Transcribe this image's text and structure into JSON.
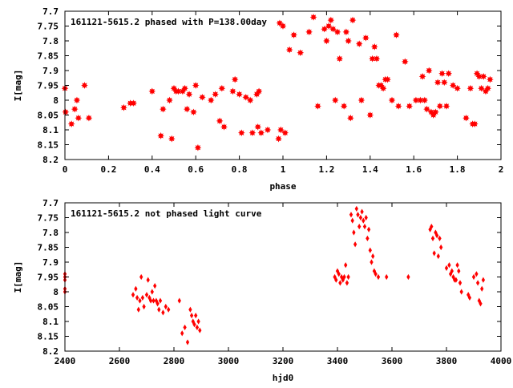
{
  "chart_data": [
    {
      "type": "scatter",
      "title": "161121-5615.2 phased with P=138.00day",
      "xlabel": "phase",
      "ylabel": "I[mag]",
      "xlim": [
        0,
        2
      ],
      "ylim": [
        8.2,
        7.7
      ],
      "y_inverted": true,
      "grid": false,
      "color": "#ff0000",
      "marker": "filled-star",
      "x_ticks": [
        "0",
        "0.2",
        "0.4",
        "0.6",
        "0.8",
        "1",
        "1.2",
        "1.4",
        "1.6",
        "1.8",
        "2"
      ],
      "y_ticks": [
        "7.7",
        "7.75",
        "7.8",
        "7.85",
        "7.9",
        "7.95",
        "8",
        "8.05",
        "8.1",
        "8.15",
        "8.2"
      ],
      "series": [
        {
          "points": [
            [
              0.0,
              7.96
            ],
            [
              0.003,
              8.04
            ],
            [
              0.03,
              8.08
            ],
            [
              0.045,
              8.03
            ],
            [
              0.055,
              8.0
            ],
            [
              0.062,
              8.06
            ],
            [
              0.09,
              7.95
            ],
            [
              0.11,
              8.06
            ],
            [
              0.27,
              8.025
            ],
            [
              0.3,
              8.01
            ],
            [
              0.315,
              8.01
            ],
            [
              0.4,
              7.97
            ],
            [
              0.44,
              8.12
            ],
            [
              0.45,
              8.03
            ],
            [
              0.48,
              8.0
            ],
            [
              0.49,
              8.13
            ],
            [
              0.5,
              7.96
            ],
            [
              0.51,
              7.97
            ],
            [
              0.52,
              7.97
            ],
            [
              0.54,
              7.97
            ],
            [
              0.55,
              7.96
            ],
            [
              0.56,
              8.03
            ],
            [
              0.57,
              7.98
            ],
            [
              0.59,
              8.04
            ],
            [
              0.6,
              7.95
            ],
            [
              0.61,
              8.16
            ],
            [
              0.63,
              7.99
            ],
            [
              0.67,
              8.0
            ],
            [
              0.69,
              7.98
            ],
            [
              0.71,
              8.07
            ],
            [
              0.72,
              7.96
            ],
            [
              0.73,
              8.09
            ],
            [
              0.77,
              7.97
            ],
            [
              0.78,
              7.93
            ],
            [
              0.8,
              7.98
            ],
            [
              0.81,
              8.11
            ],
            [
              0.83,
              7.99
            ],
            [
              0.85,
              8.0
            ],
            [
              0.86,
              8.11
            ],
            [
              0.88,
              7.98
            ],
            [
              0.885,
              8.09
            ],
            [
              0.89,
              7.97
            ],
            [
              0.9,
              8.11
            ],
            [
              0.93,
              8.1
            ],
            [
              0.98,
              8.13
            ],
            [
              0.985,
              7.74
            ],
            [
              0.99,
              8.1
            ],
            [
              1.0,
              7.75
            ],
            [
              1.01,
              8.11
            ],
            [
              1.03,
              7.83
            ],
            [
              1.05,
              7.78
            ],
            [
              1.08,
              7.84
            ],
            [
              1.12,
              7.77
            ],
            [
              1.14,
              7.72
            ],
            [
              1.16,
              8.02
            ],
            [
              1.19,
              7.76
            ],
            [
              1.2,
              7.8
            ],
            [
              1.21,
              7.75
            ],
            [
              1.22,
              7.73
            ],
            [
              1.23,
              7.76
            ],
            [
              1.24,
              8.0
            ],
            [
              1.25,
              7.77
            ],
            [
              1.26,
              7.86
            ],
            [
              1.28,
              8.02
            ],
            [
              1.29,
              7.77
            ],
            [
              1.3,
              7.8
            ],
            [
              1.31,
              8.06
            ],
            [
              1.32,
              7.73
            ],
            [
              1.35,
              7.81
            ],
            [
              1.36,
              8.0
            ],
            [
              1.38,
              7.79
            ],
            [
              1.4,
              8.05
            ],
            [
              1.41,
              7.86
            ],
            [
              1.42,
              7.82
            ],
            [
              1.43,
              7.86
            ],
            [
              1.44,
              7.95
            ],
            [
              1.45,
              7.95
            ],
            [
              1.46,
              7.96
            ],
            [
              1.47,
              7.93
            ],
            [
              1.48,
              7.93
            ],
            [
              1.5,
              8.0
            ],
            [
              1.52,
              7.78
            ],
            [
              1.53,
              8.02
            ],
            [
              1.56,
              7.87
            ],
            [
              1.58,
              8.02
            ],
            [
              1.61,
              8.0
            ],
            [
              1.63,
              8.0
            ],
            [
              1.64,
              7.92
            ],
            [
              1.65,
              8.0
            ],
            [
              1.66,
              8.03
            ],
            [
              1.67,
              7.9
            ],
            [
              1.68,
              8.04
            ],
            [
              1.69,
              8.05
            ],
            [
              1.7,
              8.04
            ],
            [
              1.71,
              7.94
            ],
            [
              1.72,
              8.02
            ],
            [
              1.73,
              7.91
            ],
            [
              1.74,
              7.94
            ],
            [
              1.75,
              8.02
            ],
            [
              1.76,
              7.91
            ],
            [
              1.78,
              7.95
            ],
            [
              1.8,
              7.96
            ],
            [
              1.84,
              8.06
            ],
            [
              1.86,
              7.96
            ],
            [
              1.87,
              8.08
            ],
            [
              1.88,
              8.08
            ],
            [
              1.89,
              7.91
            ],
            [
              1.9,
              7.92
            ],
            [
              1.91,
              7.96
            ],
            [
              1.92,
              7.92
            ],
            [
              1.93,
              7.97
            ],
            [
              1.94,
              7.96
            ],
            [
              1.95,
              7.93
            ]
          ]
        }
      ]
    },
    {
      "type": "scatter",
      "title": "161121-5615.2 not phased light curve",
      "xlabel": "hjd0",
      "ylabel": "I[mag]",
      "xlim": [
        2400,
        4000
      ],
      "ylim": [
        8.2,
        7.7
      ],
      "y_inverted": true,
      "grid": false,
      "color": "#ff0000",
      "marker": "diamond",
      "x_ticks": [
        "2400",
        "2600",
        "2800",
        "3000",
        "3200",
        "3400",
        "3600",
        "3800",
        "4000"
      ],
      "y_ticks": [
        "7.7",
        "7.75",
        "7.8",
        "7.85",
        "7.9",
        "7.95",
        "8",
        "8.05",
        "8.1",
        "8.15",
        "8.2"
      ],
      "series": [
        {
          "points": [
            [
              2400,
              7.94
            ],
            [
              2400,
              7.96
            ],
            [
              2400,
              7.99
            ],
            [
              2400,
              8.0
            ],
            [
              2400,
              7.95
            ],
            [
              2650,
              8.01
            ],
            [
              2660,
              7.99
            ],
            [
              2665,
              8.02
            ],
            [
              2670,
              8.06
            ],
            [
              2675,
              8.03
            ],
            [
              2680,
              7.95
            ],
            [
              2685,
              8.02
            ],
            [
              2690,
              8.05
            ],
            [
              2700,
              8.01
            ],
            [
              2705,
              7.96
            ],
            [
              2710,
              8.02
            ],
            [
              2715,
              8.03
            ],
            [
              2720,
              8.0
            ],
            [
              2725,
              8.03
            ],
            [
              2730,
              7.98
            ],
            [
              2735,
              8.03
            ],
            [
              2740,
              8.04
            ],
            [
              2745,
              8.06
            ],
            [
              2750,
              8.03
            ],
            [
              2760,
              8.07
            ],
            [
              2770,
              8.05
            ],
            [
              2780,
              8.06
            ],
            [
              2820,
              8.03
            ],
            [
              2830,
              8.14
            ],
            [
              2840,
              8.12
            ],
            [
              2850,
              8.17
            ],
            [
              2860,
              8.06
            ],
            [
              2865,
              8.08
            ],
            [
              2870,
              8.1
            ],
            [
              2875,
              8.11
            ],
            [
              2880,
              8.08
            ],
            [
              2885,
              8.12
            ],
            [
              2890,
              8.1
            ],
            [
              2895,
              8.13
            ],
            [
              3390,
              7.95
            ],
            [
              3395,
              7.96
            ],
            [
              3400,
              7.93
            ],
            [
              3405,
              7.94
            ],
            [
              3410,
              7.97
            ],
            [
              3415,
              7.95
            ],
            [
              3420,
              7.96
            ],
            [
              3425,
              7.95
            ],
            [
              3430,
              7.91
            ],
            [
              3435,
              7.97
            ],
            [
              3440,
              7.95
            ],
            [
              3450,
              7.74
            ],
            [
              3455,
              7.76
            ],
            [
              3460,
              7.8
            ],
            [
              3465,
              7.84
            ],
            [
              3470,
              7.72
            ],
            [
              3475,
              7.74
            ],
            [
              3480,
              7.78
            ],
            [
              3485,
              7.75
            ],
            [
              3490,
              7.73
            ],
            [
              3495,
              7.76
            ],
            [
              3500,
              7.78
            ],
            [
              3505,
              7.75
            ],
            [
              3510,
              7.82
            ],
            [
              3515,
              7.79
            ],
            [
              3520,
              7.86
            ],
            [
              3525,
              7.9
            ],
            [
              3530,
              7.88
            ],
            [
              3535,
              7.93
            ],
            [
              3540,
              7.94
            ],
            [
              3550,
              7.95
            ],
            [
              3580,
              7.95
            ],
            [
              3660,
              7.95
            ],
            [
              3740,
              7.79
            ],
            [
              3745,
              7.78
            ],
            [
              3750,
              7.82
            ],
            [
              3755,
              7.87
            ],
            [
              3760,
              7.8
            ],
            [
              3765,
              7.81
            ],
            [
              3770,
              7.88
            ],
            [
              3775,
              7.82
            ],
            [
              3780,
              7.85
            ],
            [
              3800,
              7.92
            ],
            [
              3810,
              7.91
            ],
            [
              3815,
              7.94
            ],
            [
              3820,
              7.93
            ],
            [
              3825,
              7.95
            ],
            [
              3830,
              7.96
            ],
            [
              3835,
              7.96
            ],
            [
              3840,
              7.91
            ],
            [
              3845,
              7.93
            ],
            [
              3850,
              7.97
            ],
            [
              3855,
              8.0
            ],
            [
              3880,
              8.01
            ],
            [
              3885,
              8.02
            ],
            [
              3900,
              7.95
            ],
            [
              3910,
              7.94
            ],
            [
              3915,
              7.97
            ],
            [
              3920,
              8.03
            ],
            [
              3925,
              8.04
            ],
            [
              3930,
              7.99
            ],
            [
              3935,
              7.96
            ]
          ]
        }
      ]
    }
  ]
}
